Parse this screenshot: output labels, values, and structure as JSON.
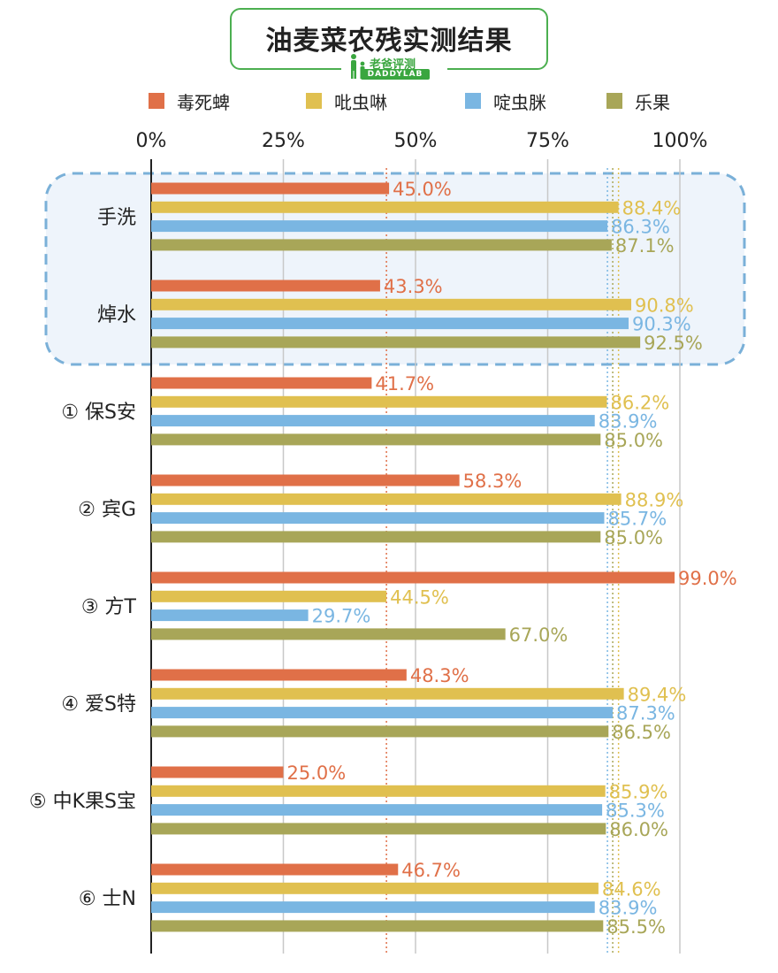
{
  "title": "油麦菜农残实测结果",
  "logo": {
    "cn": "老爸评测",
    "en": "DADDYLAB"
  },
  "colors": {
    "series": [
      "#e07048",
      "#e0c050",
      "#7ab6e2",
      "#a8a658"
    ],
    "highlight_border": "#7ab0d8",
    "highlight_fill": "#eef4fb",
    "title_border": "#4caf50",
    "logo_green": "#3aa63f"
  },
  "chart_data": {
    "type": "bar",
    "orientation": "horizontal",
    "title": "油麦菜农残实测结果",
    "series": [
      {
        "name": "毒死蜱",
        "values": [
          45.0,
          43.3,
          41.7,
          58.3,
          99.0,
          48.3,
          25.0,
          46.7
        ]
      },
      {
        "name": "吡虫啉",
        "values": [
          88.4,
          90.8,
          86.2,
          88.9,
          44.5,
          89.4,
          85.9,
          84.6
        ]
      },
      {
        "name": "啶虫脒",
        "values": [
          86.3,
          90.3,
          83.9,
          85.7,
          29.7,
          87.3,
          85.3,
          83.9
        ]
      },
      {
        "name": "乐果",
        "values": [
          87.1,
          92.5,
          85.0,
          85.0,
          67.0,
          86.5,
          86.0,
          85.5
        ]
      }
    ],
    "categories": [
      "手洗",
      "焯水",
      "① 保S安",
      "② 宾G",
      "③ 方T",
      "④ 爱S特",
      "⑤ 中K果S宝",
      "⑥ 士N"
    ],
    "x_ticks": [
      "0%",
      "25%",
      "50%",
      "75%",
      "100%"
    ],
    "xlim": [
      0,
      100
    ],
    "unit": "%",
    "grid": true,
    "legend_position": "top",
    "highlighted_categories": [
      "手洗",
      "焯水"
    ],
    "reference_lines": [
      44.5,
      86.3,
      87.3,
      88.4
    ]
  }
}
